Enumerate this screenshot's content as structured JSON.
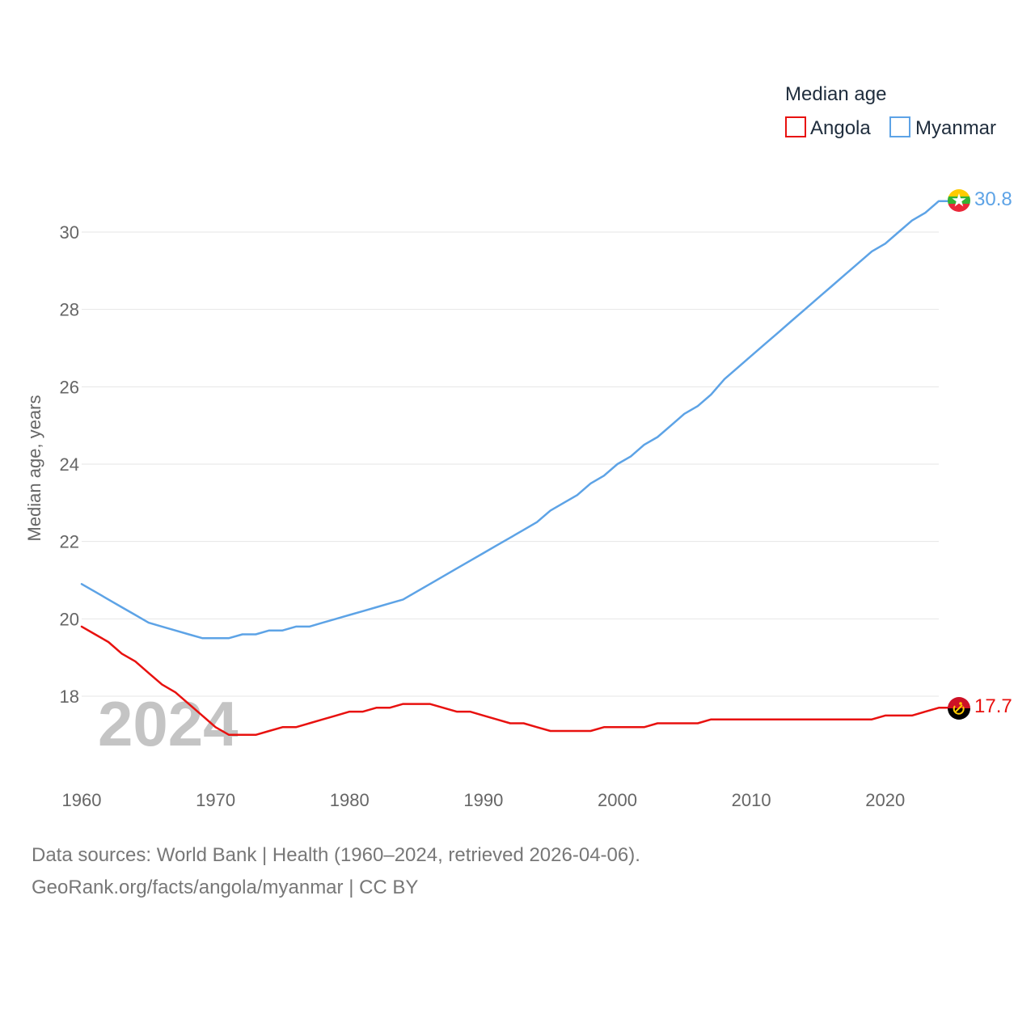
{
  "chart_data": {
    "type": "line",
    "legend_title": "Median age",
    "ylabel": "Median age, years",
    "xlabel": "",
    "xlim": [
      1960,
      2024
    ],
    "ylim": [
      16,
      31.5
    ],
    "x_ticks": [
      1960,
      1970,
      1980,
      1990,
      2000,
      2010,
      2020
    ],
    "y_ticks": [
      18,
      20,
      22,
      24,
      26,
      28,
      30
    ],
    "grid": true,
    "legend_position": "top-right",
    "year_label": "2024",
    "x": [
      1960,
      1961,
      1962,
      1963,
      1964,
      1965,
      1966,
      1967,
      1968,
      1969,
      1970,
      1971,
      1972,
      1973,
      1974,
      1975,
      1976,
      1977,
      1978,
      1979,
      1980,
      1981,
      1982,
      1983,
      1984,
      1985,
      1986,
      1987,
      1988,
      1989,
      1990,
      1991,
      1992,
      1993,
      1994,
      1995,
      1996,
      1997,
      1998,
      1999,
      2000,
      2001,
      2002,
      2003,
      2004,
      2005,
      2006,
      2007,
      2008,
      2009,
      2010,
      2011,
      2012,
      2013,
      2014,
      2015,
      2016,
      2017,
      2018,
      2019,
      2020,
      2021,
      2022,
      2023,
      2024
    ],
    "series": [
      {
        "name": "Angola",
        "color": "#e8110f",
        "end_label": "17.7",
        "flag_icon": "angola-flag-icon",
        "values": [
          19.8,
          19.6,
          19.4,
          19.1,
          18.9,
          18.6,
          18.3,
          18.1,
          17.8,
          17.5,
          17.2,
          17.0,
          17.0,
          17.0,
          17.1,
          17.2,
          17.2,
          17.3,
          17.4,
          17.5,
          17.6,
          17.6,
          17.7,
          17.7,
          17.8,
          17.8,
          17.8,
          17.7,
          17.6,
          17.6,
          17.5,
          17.4,
          17.3,
          17.3,
          17.2,
          17.1,
          17.1,
          17.1,
          17.1,
          17.2,
          17.2,
          17.2,
          17.2,
          17.3,
          17.3,
          17.3,
          17.3,
          17.4,
          17.4,
          17.4,
          17.4,
          17.4,
          17.4,
          17.4,
          17.4,
          17.4,
          17.4,
          17.4,
          17.4,
          17.4,
          17.5,
          17.5,
          17.5,
          17.6,
          17.7
        ]
      },
      {
        "name": "Myanmar",
        "color": "#5da3e6",
        "end_label": "30.8",
        "flag_icon": "myanmar-flag-icon",
        "values": [
          20.9,
          20.7,
          20.5,
          20.3,
          20.1,
          19.9,
          19.8,
          19.7,
          19.6,
          19.5,
          19.5,
          19.5,
          19.6,
          19.6,
          19.7,
          19.7,
          19.8,
          19.8,
          19.9,
          20.0,
          20.1,
          20.2,
          20.3,
          20.4,
          20.5,
          20.7,
          20.9,
          21.1,
          21.3,
          21.5,
          21.7,
          21.9,
          22.1,
          22.3,
          22.5,
          22.8,
          23.0,
          23.2,
          23.5,
          23.7,
          24.0,
          24.2,
          24.5,
          24.7,
          25.0,
          25.3,
          25.5,
          25.8,
          26.2,
          26.5,
          26.8,
          27.1,
          27.4,
          27.7,
          28.0,
          28.3,
          28.6,
          28.9,
          29.2,
          29.5,
          29.7,
          30.0,
          30.3,
          30.5,
          30.8
        ]
      }
    ]
  },
  "footer": {
    "line1": "Data sources: World Bank | Health (1960–2024, retrieved 2026-04-06).",
    "line2": "GeoRank.org/facts/angola/myanmar | CC BY"
  }
}
